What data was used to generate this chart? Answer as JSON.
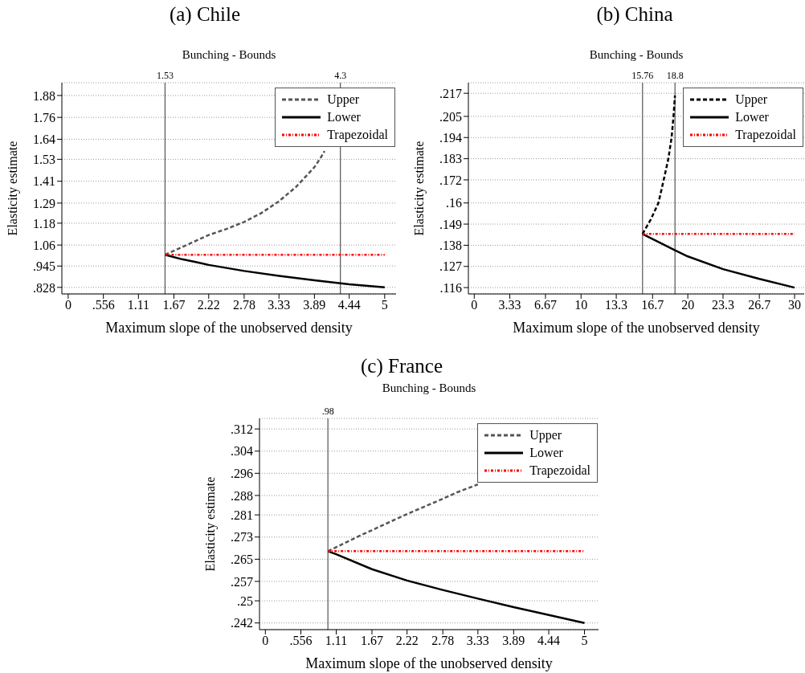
{
  "chart_data": [
    {
      "type": "line",
      "title": "(a) Chile",
      "subtitle": "Bunching - Bounds",
      "xlabel": "Maximum slope of the unobserved density",
      "ylabel": "Elasticity estimate",
      "xlim": [
        -0.1,
        5.18
      ],
      "xticks": [
        0,
        {
          "value": 0.556,
          "label": ".556"
        },
        1.11,
        1.67,
        2.22,
        2.78,
        3.33,
        3.89,
        4.44,
        5
      ],
      "ylim": [
        0.792,
        1.95
      ],
      "yticks": [
        {
          "value": 0.828,
          "label": ".828"
        },
        {
          "value": 0.945,
          "label": ".945"
        },
        1.06,
        1.18,
        1.29,
        1.41,
        1.53,
        1.64,
        1.76,
        1.88
      ],
      "grid": "y",
      "legend": "top right",
      "ref_lines": [
        {
          "axis": "x",
          "value": 1.53,
          "label": "1.53",
          "color": "#555555"
        },
        {
          "axis": "x",
          "value": 4.3,
          "label": "4.3",
          "color": "#555555"
        }
      ],
      "series": [
        {
          "name": "Upper",
          "color": "#555555",
          "line_style": "dashed",
          "x": [
            1.53,
            1.8,
            2.22,
            2.5,
            2.78,
            3.05,
            3.33,
            3.6,
            3.89,
            4.0,
            4.05
          ],
          "values": [
            1.007,
            1.049,
            1.115,
            1.148,
            1.187,
            1.235,
            1.3,
            1.379,
            1.487,
            1.545,
            1.575
          ]
        },
        {
          "name": "Lower",
          "color": "#000000",
          "line_style": "solid",
          "x": [
            1.53,
            1.8,
            2.0,
            2.22,
            2.78,
            3.33,
            3.89,
            4.44,
            5
          ],
          "values": [
            1.007,
            0.982,
            0.968,
            0.951,
            0.918,
            0.891,
            0.867,
            0.845,
            0.828
          ]
        },
        {
          "name": "Trapezoidal",
          "color": "#ff0000",
          "line_style": "dotted",
          "x": [
            1.53,
            5
          ],
          "values": [
            1.007,
            1.007
          ]
        }
      ]
    },
    {
      "type": "line",
      "title": "(b) China",
      "subtitle": "Bunching - Bounds",
      "xlabel": "Maximum slope of the unobserved density",
      "ylabel": "Elasticity estimate",
      "xlim": [
        -0.55,
        30.9
      ],
      "xticks": [
        0,
        3.33,
        6.67,
        10,
        13.3,
        16.7,
        20,
        23.3,
        26.7,
        30
      ],
      "ylim": [
        0.1127,
        0.2225
      ],
      "yticks": [
        {
          "value": 0.116,
          "label": ".116"
        },
        {
          "value": 0.127,
          "label": ".127"
        },
        {
          "value": 0.138,
          "label": ".138"
        },
        {
          "value": 0.149,
          "label": ".149"
        },
        {
          "value": 0.16,
          "label": ".16"
        },
        {
          "value": 0.172,
          "label": ".172"
        },
        {
          "value": 0.183,
          "label": ".183"
        },
        {
          "value": 0.194,
          "label": ".194"
        },
        {
          "value": 0.205,
          "label": ".205"
        },
        {
          "value": 0.217,
          "label": ".217"
        }
      ],
      "grid": "y",
      "legend": "top right",
      "ref_lines": [
        {
          "axis": "x",
          "value": 15.76,
          "label": "15.76",
          "color": "#555555"
        },
        {
          "axis": "x",
          "value": 18.8,
          "label": "18.8",
          "color": "#555555"
        }
      ],
      "series": [
        {
          "name": "Upper",
          "color": "#000000",
          "line_style": "dashed",
          "x": [
            15.76,
            16.54,
            17.25,
            17.8,
            18.18,
            18.48,
            18.66,
            18.8
          ],
          "values": [
            0.1439,
            0.1515,
            0.16,
            0.1734,
            0.183,
            0.194,
            0.205,
            0.2159
          ]
        },
        {
          "name": "Lower",
          "color": "#000000",
          "line_style": "solid",
          "x": [
            15.76,
            17,
            18.8,
            20,
            23.3,
            26.7,
            30
          ],
          "values": [
            0.1439,
            0.1404,
            0.1354,
            0.1322,
            0.1256,
            0.1205,
            0.116
          ]
        },
        {
          "name": "Trapezoidal",
          "color": "#ff0000",
          "line_style": "dotted",
          "x": [
            15.76,
            30
          ],
          "values": [
            0.1439,
            0.1439
          ]
        }
      ]
    },
    {
      "type": "line",
      "title": "(c) France",
      "subtitle": "Bunching - Bounds",
      "xlabel": "Maximum slope of the unobserved density",
      "ylabel": "Elasticity estimate",
      "xlim": [
        -0.092,
        5.22
      ],
      "xticks": [
        0,
        {
          "value": 0.556,
          "label": ".556"
        },
        1.11,
        1.67,
        2.22,
        2.78,
        3.33,
        3.89,
        4.44,
        5
      ],
      "ylim": [
        0.2396,
        0.3158
      ],
      "yticks": [
        {
          "value": 0.242,
          "label": ".242"
        },
        {
          "value": 0.25,
          "label": ".25"
        },
        {
          "value": 0.257,
          "label": ".257"
        },
        {
          "value": 0.265,
          "label": ".265"
        },
        {
          "value": 0.273,
          "label": ".273"
        },
        {
          "value": 0.281,
          "label": ".281"
        },
        {
          "value": 0.288,
          "label": ".288"
        },
        {
          "value": 0.296,
          "label": ".296"
        },
        {
          "value": 0.304,
          "label": ".304"
        },
        {
          "value": 0.312,
          "label": ".312"
        }
      ],
      "grid": "y",
      "legend": "top right",
      "ref_lines": [
        {
          "axis": "x",
          "value": 0.98,
          "label": ".98",
          "color": "#555555"
        }
      ],
      "series": [
        {
          "name": "Upper",
          "color": "#555555",
          "line_style": "dashed",
          "x": [
            0.98,
            1.5,
            2.22,
            2.78,
            3.0,
            3.33
          ],
          "values": [
            0.2679,
            0.2737,
            0.2813,
            0.2868,
            0.2891,
            0.292
          ]
        },
        {
          "name": "Lower",
          "color": "#000000",
          "line_style": "solid",
          "x": [
            0.98,
            1.11,
            1.67,
            2.22,
            2.78,
            3.33,
            3.89,
            4.44,
            5
          ],
          "values": [
            0.2679,
            0.2668,
            0.2614,
            0.2573,
            0.2539,
            0.2508,
            0.2477,
            0.2449,
            0.242
          ]
        },
        {
          "name": "Trapezoidal",
          "color": "#ff0000",
          "line_style": "dotted",
          "x": [
            0.98,
            5
          ],
          "values": [
            0.2679,
            0.2679
          ]
        }
      ]
    }
  ]
}
